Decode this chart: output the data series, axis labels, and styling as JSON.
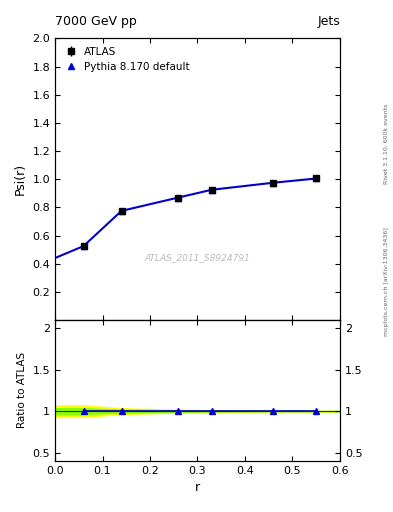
{
  "title_left": "7000 GeV pp",
  "title_right": "Jets",
  "right_label_top": "Rivet 3.1.10, 600k events",
  "right_label_bot": "mcplots.cern.ch [arXiv:1306.3436]",
  "watermark": "ATLAS_2011_S8924791",
  "ylabel_main": "Psi(r)",
  "ylabel_ratio": "Ratio to ATLAS",
  "xlabel": "r",
  "xlim": [
    0,
    0.6
  ],
  "ylim_main": [
    0.0,
    2.0
  ],
  "ylim_ratio": [
    0.4,
    2.1
  ],
  "yticks_main": [
    0.2,
    0.4,
    0.6,
    0.8,
    1.0,
    1.2,
    1.4,
    1.6,
    1.8,
    2.0
  ],
  "yticks_ratio": [
    0.5,
    1.0,
    1.5,
    2.0
  ],
  "ytick_labels_ratio": [
    "0.5",
    "1",
    "1.5",
    "2"
  ],
  "data_x": [
    0.06,
    0.14,
    0.26,
    0.33,
    0.46,
    0.55
  ],
  "data_y": [
    0.525,
    0.775,
    0.87,
    0.925,
    0.975,
    1.005
  ],
  "data_yerr": [
    0.015,
    0.01,
    0.01,
    0.008,
    0.006,
    0.005
  ],
  "mc_x": [
    0.0,
    0.06,
    0.14,
    0.26,
    0.33,
    0.46,
    0.55
  ],
  "mc_y": [
    0.44,
    0.525,
    0.775,
    0.87,
    0.925,
    0.975,
    1.005
  ],
  "mc_pts_x": [
    0.06,
    0.14,
    0.26,
    0.33,
    0.46,
    0.55
  ],
  "mc_pts_y": [
    0.525,
    0.775,
    0.87,
    0.925,
    0.975,
    1.005
  ],
  "mc_color": "#0000cc",
  "legend_data": "ATLAS",
  "legend_mc": "Pythia 8.170 default",
  "band_yellow_x": [
    0.0,
    0.06,
    0.14,
    0.26,
    0.33,
    0.46,
    0.55,
    0.6
  ],
  "band_yellow_ylo": [
    0.93,
    0.93,
    0.965,
    0.983,
    0.99,
    0.995,
    0.997,
    0.997
  ],
  "band_yellow_yhi": [
    1.07,
    1.07,
    1.035,
    1.017,
    1.01,
    1.005,
    1.003,
    1.003
  ],
  "band_green_x": [
    0.0,
    0.06,
    0.14,
    0.26,
    0.33,
    0.46,
    0.55,
    0.6
  ],
  "band_green_ylo": [
    0.965,
    0.965,
    0.982,
    0.991,
    0.995,
    0.997,
    0.998,
    0.998
  ],
  "band_green_yhi": [
    1.035,
    1.035,
    1.018,
    1.009,
    1.005,
    1.003,
    1.002,
    1.002
  ]
}
